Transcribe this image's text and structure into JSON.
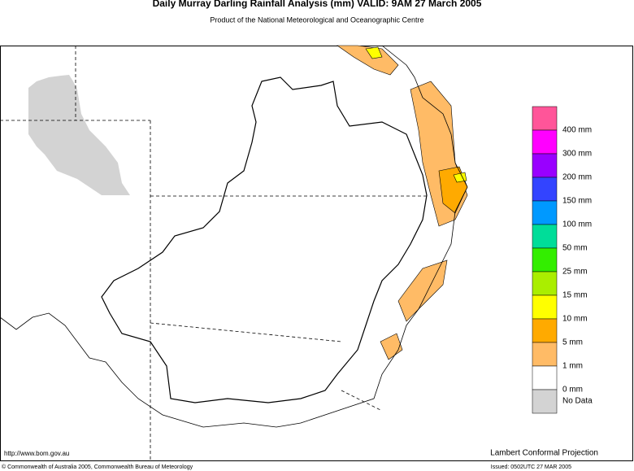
{
  "header": {
    "title": "Daily Murray Darling Rainfall Analysis (mm)  VALID: 9AM 27 March 2005",
    "subtitle": "Product of the National Meteorological and Oceanographic Centre"
  },
  "legend": {
    "colors": [
      "#ff5599",
      "#ff00ff",
      "#9900ff",
      "#3344ff",
      "#0099ff",
      "#00dd99",
      "#33ee00",
      "#aaee00",
      "#ffff00",
      "#ffaa00",
      "#ffbb66",
      "#ffffff",
      "#d3d3d3"
    ],
    "labels": [
      "400 mm",
      "300 mm",
      "200 mm",
      "150 mm",
      "100 mm",
      "50 mm",
      "25 mm",
      "15 mm",
      "10 mm",
      "5 mm",
      "1 mm",
      "0 mm",
      "No Data"
    ]
  },
  "footer": {
    "url": "http://www.bom.gov.au",
    "projection": "Lambert Conformal Projection",
    "copyright": "© Commonwealth of Australia 2005, Commonwealth Bureau of Meteorology",
    "issued": "Issued: 0502UTC 27 MAR 2005"
  }
}
